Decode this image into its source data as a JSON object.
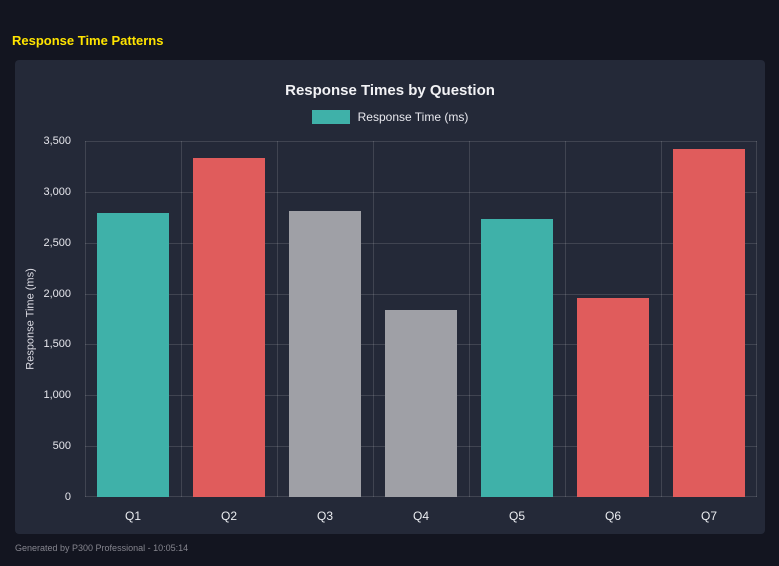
{
  "page": {
    "title": "Response Time Patterns",
    "footer": "Generated by P300 Professional - 10:05:14"
  },
  "colors": {
    "background": "#131520",
    "panel": "#242938",
    "teal": "#3fb1a9",
    "red": "#e05c5c",
    "gray": "#9fa0a6",
    "grid": "rgba(255,255,255,0.13)",
    "title_yellow": "#ffe400"
  },
  "chart_data": {
    "type": "bar",
    "title": "Response Times by Question",
    "legend": {
      "label": "Response Time (ms)",
      "color": "#3fb1a9",
      "position": "top"
    },
    "xlabel": "",
    "ylabel": "Response Time (ms)",
    "categories": [
      "Q1",
      "Q2",
      "Q3",
      "Q4",
      "Q5",
      "Q6",
      "Q7"
    ],
    "values": [
      2790,
      3330,
      2810,
      1840,
      2730,
      1960,
      3420
    ],
    "bar_colors": [
      "#3fb1a9",
      "#e05c5c",
      "#9fa0a6",
      "#9fa0a6",
      "#3fb1a9",
      "#e05c5c",
      "#e05c5c"
    ],
    "ylim": [
      0,
      3500
    ],
    "ytick_step": 500,
    "yticks": [
      "0",
      "500",
      "1,000",
      "1,500",
      "2,000",
      "2,500",
      "3,000",
      "3,500"
    ],
    "grid": true
  }
}
